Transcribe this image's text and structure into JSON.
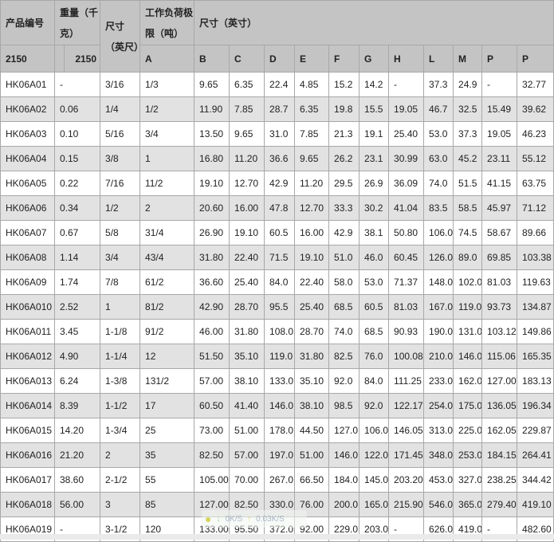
{
  "header": {
    "product_no": "产品编号",
    "weight": "重量（千克）",
    "size": "尺寸（英尺）",
    "wll": "工作负荷极限（吨）",
    "dims": "尺寸（英寸）",
    "sub_product": "2150",
    "sub_weight": "2150",
    "cols": [
      "A",
      "B",
      "C",
      "D",
      "E",
      "F",
      "G",
      "H",
      "L",
      "M",
      "P",
      "P"
    ]
  },
  "rows": [
    [
      "HK06A01",
      "-",
      "3/16",
      "1/3",
      "9.65",
      "6.35",
      "22.4",
      "4.85",
      "15.2",
      "14.2",
      "-",
      "37.3",
      "24.9",
      "-",
      "32.77"
    ],
    [
      "HK06A02",
      "0.06",
      "1/4",
      "1/2",
      "11.90",
      "7.85",
      "28.7",
      "6.35",
      "19.8",
      "15.5",
      "19.05",
      "46.7",
      "32.5",
      "15.49",
      "39.62"
    ],
    [
      "HK06A03",
      "0.10",
      "5/16",
      "3/4",
      "13.50",
      "9.65",
      "31.0",
      "7.85",
      "21.3",
      "19.1",
      "25.40",
      "53.0",
      "37.3",
      "19.05",
      "46.23"
    ],
    [
      "HK06A04",
      "0.15",
      "3/8",
      "1",
      "16.80",
      "11.20",
      "36.6",
      "9.65",
      "26.2",
      "23.1",
      "30.99",
      "63.0",
      "45.2",
      "23.11",
      "55.12"
    ],
    [
      "HK06A05",
      "0.22",
      "7/16",
      "11/2",
      "19.10",
      "12.70",
      "42.9",
      "11.20",
      "29.5",
      "26.9",
      "36.09",
      "74.0",
      "51.5",
      "41.15",
      "63.75"
    ],
    [
      "HK06A06",
      "0.34",
      "1/2",
      "2",
      "20.60",
      "16.00",
      "47.8",
      "12.70",
      "33.3",
      "30.2",
      "41.04",
      "83.5",
      "58.5",
      "45.97",
      "71.12"
    ],
    [
      "HK06A07",
      "0.67",
      "5/8",
      "31/4",
      "26.90",
      "19.10",
      "60.5",
      "16.00",
      "42.9",
      "38.1",
      "50.80",
      "106.0",
      "74.5",
      "58.67",
      "89.66"
    ],
    [
      "HK06A08",
      "1.14",
      "3/4",
      "43/4",
      "31.80",
      "22.40",
      "71.5",
      "19.10",
      "51.0",
      "46.0",
      "60.45",
      "126.0",
      "89.0",
      "69.85",
      "103.38"
    ],
    [
      "HK06A09",
      "1.74",
      "7/8",
      "61/2",
      "36.60",
      "25.40",
      "84.0",
      "22.40",
      "58.0",
      "53.0",
      "71.37",
      "148.0",
      "102.0",
      "81.03",
      "119.63"
    ],
    [
      "HK06A010",
      "2.52",
      "1",
      "81/2",
      "42.90",
      "28.70",
      "95.5",
      "25.40",
      "68.5",
      "60.5",
      "81.03",
      "167.0",
      "119.0",
      "93.73",
      "134.87"
    ],
    [
      "HK06A011",
      "3.45",
      "1-1/8",
      "91/2",
      "46.00",
      "31.80",
      "108.0",
      "28.70",
      "74.0",
      "68.5",
      "90.93",
      "190.0",
      "131.0",
      "103.12",
      "149.86"
    ],
    [
      "HK06A012",
      "4.90",
      "1-1/4",
      "12",
      "51.50",
      "35.10",
      "119.0",
      "31.80",
      "82.5",
      "76.0",
      "100.08",
      "210.0",
      "146.0",
      "115.06",
      "165.35"
    ],
    [
      "HK06A013",
      "6.24",
      "1-3/8",
      "131/2",
      "57.00",
      "38.10",
      "133.0",
      "35.10",
      "92.0",
      "84.0",
      "111.25",
      "233.0",
      "162.0",
      "127.00",
      "183.13"
    ],
    [
      "HK06A014",
      "8.39",
      "1-1/2",
      "17",
      "60.50",
      "41.40",
      "146.0",
      "38.10",
      "98.5",
      "92.0",
      "122.17",
      "254.0",
      "175.0",
      "136.05",
      "196.34"
    ],
    [
      "HK06A015",
      "14.20",
      "1-3/4",
      "25",
      "73.00",
      "51.00",
      "178.0",
      "44.50",
      "127.0",
      "106.0",
      "146.05",
      "313.0",
      "225.0",
      "162.05",
      "229.87"
    ],
    [
      "HK06A016",
      "21.20",
      "2",
      "35",
      "82.50",
      "57.00",
      "197.0",
      "51.00",
      "146.0",
      "122.0",
      "171.45",
      "348.0",
      "253.0",
      "184.15",
      "264.41"
    ],
    [
      "HK06A017",
      "38.60",
      "2-1/2",
      "55",
      "105.00",
      "70.00",
      "267.0",
      "66.50",
      "184.0",
      "145.0",
      "203.20",
      "453.0",
      "327.0",
      "238.25",
      "344.42"
    ],
    [
      "HK06A018",
      "56.00",
      "3",
      "85",
      "127.00",
      "82.50",
      "330.0",
      "76.00",
      "200.0",
      "165.0",
      "215.90",
      "546.0",
      "365.0",
      "279.40",
      "419.10"
    ],
    [
      "HK06A019",
      "-",
      "3-1/2",
      "120",
      "133.00",
      "95.50",
      "372.0",
      "92.00",
      "229.0",
      "203.0",
      "-",
      "626.0",
      "419.0",
      "-",
      "482.60"
    ]
  ],
  "net_widget": {
    "down": "0K/S",
    "up": "0.03K/S"
  }
}
